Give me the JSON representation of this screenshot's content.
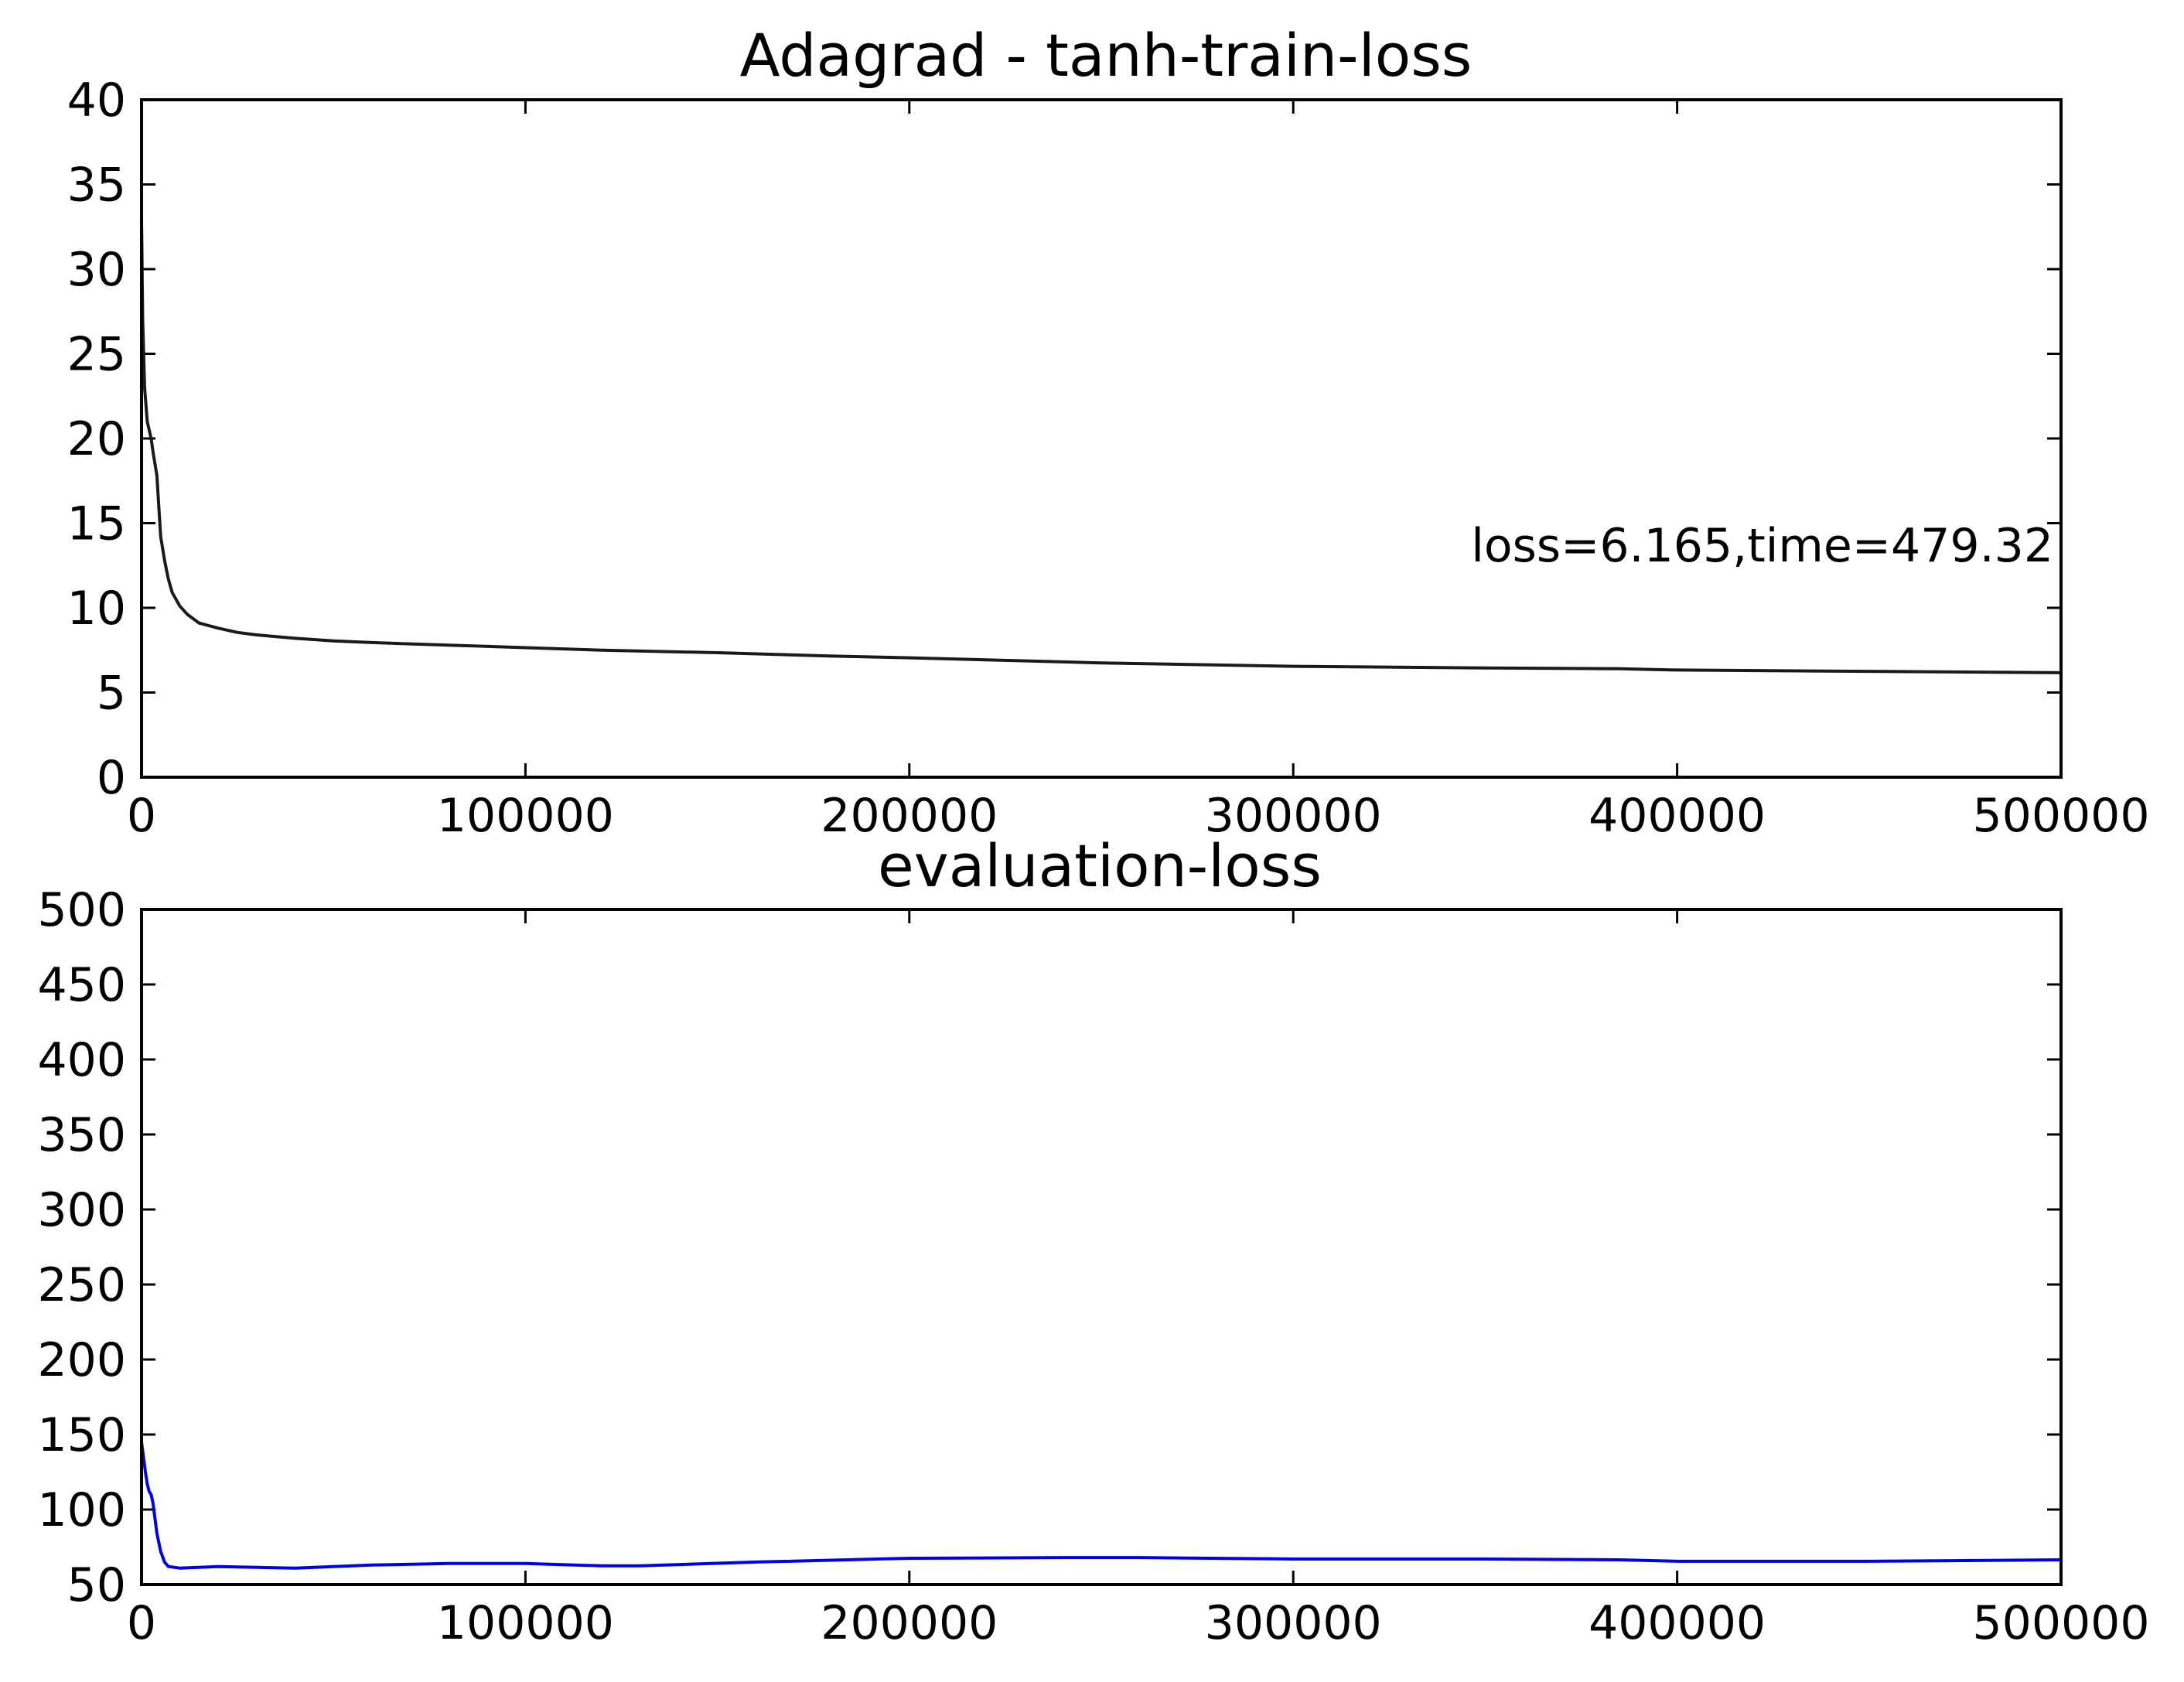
{
  "figure": {
    "background": "#ffffff"
  },
  "chart_data": [
    {
      "type": "line",
      "title": "Adagrad - tanh-train-loss",
      "xlabel": "",
      "ylabel": "",
      "xlim": [
        0,
        500000
      ],
      "ylim": [
        0,
        40
      ],
      "xticks": [
        0,
        100000,
        200000,
        300000,
        400000,
        500000
      ],
      "yticks": [
        0,
        5,
        10,
        15,
        20,
        25,
        30,
        35,
        40
      ],
      "grid": false,
      "annotation": "loss=6.165,time=479.32",
      "series": [
        {
          "color": "#1a1a1a",
          "x": [
            0,
            300,
            800,
            1500,
            2000,
            2500,
            3000,
            3500,
            4000,
            4500,
            5000,
            6000,
            7000,
            8000,
            10000,
            12000,
            15000,
            20000,
            25000,
            30000,
            40000,
            50000,
            60000,
            70000,
            80000,
            100000,
            120000,
            150000,
            180000,
            200000,
            250000,
            300000,
            350000,
            385000,
            400000,
            450000,
            500000
          ],
          "y": [
            33,
            27,
            23,
            21,
            20.5,
            20,
            19.2,
            18.5,
            17.8,
            16,
            14.2,
            12.8,
            11.7,
            10.9,
            10.1,
            9.6,
            9.1,
            8.8,
            8.55,
            8.4,
            8.2,
            8.05,
            7.95,
            7.87,
            7.8,
            7.65,
            7.5,
            7.35,
            7.15,
            7.05,
            6.75,
            6.55,
            6.45,
            6.4,
            6.33,
            6.25,
            6.17
          ]
        }
      ]
    },
    {
      "type": "line",
      "title": "evaluation-loss",
      "xlabel": "",
      "ylabel": "",
      "xlim": [
        0,
        500000
      ],
      "ylim": [
        50,
        500
      ],
      "xticks": [
        0,
        100000,
        200000,
        300000,
        400000,
        500000
      ],
      "yticks": [
        50,
        100,
        150,
        200,
        250,
        300,
        350,
        400,
        450,
        500
      ],
      "grid": false,
      "series": [
        {
          "color": "#0000ee",
          "x": [
            0,
            500,
            1000,
            1500,
            2000,
            2500,
            3000,
            3500,
            4000,
            5000,
            6000,
            7000,
            10000,
            20000,
            40000,
            60000,
            80000,
            100000,
            120000,
            130000,
            160000,
            200000,
            240000,
            260000,
            300000,
            350000,
            385000,
            400000,
            450000,
            500000
          ],
          "y": [
            145,
            135,
            125,
            117,
            112,
            110,
            104,
            94,
            84,
            72,
            65,
            62,
            61,
            62,
            61,
            63,
            64,
            64,
            62.5,
            62.5,
            65,
            67.5,
            68,
            68,
            67,
            67,
            66.5,
            65.5,
            65.5,
            66.5
          ]
        }
      ]
    }
  ]
}
